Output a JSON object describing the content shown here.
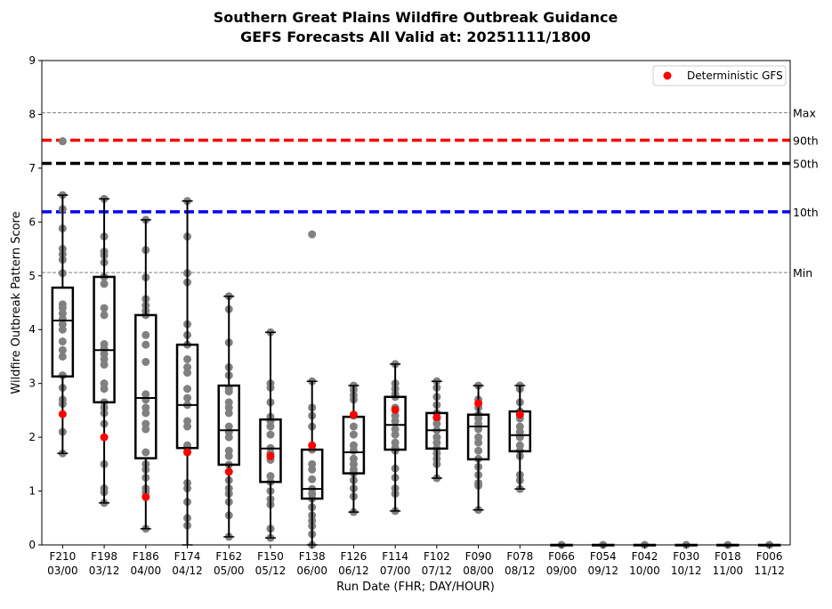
{
  "chart_data": {
    "type": "box",
    "title": [
      "Southern Great Plains Wildfire Outbreak Guidance",
      "GEFS Forecasts All Valid at: 20251111/1800"
    ],
    "xlabel": "Run Date (FHR; DAY/HOUR)",
    "ylabel": "Wildfire Outbreak Pattern Score",
    "ylim": [
      0,
      9
    ],
    "yticks": [
      "0",
      "1",
      "2",
      "3",
      "4",
      "5",
      "6",
      "7",
      "8",
      "9"
    ],
    "categories": [
      [
        "F210",
        "03/00"
      ],
      [
        "F198",
        "03/12"
      ],
      [
        "F186",
        "04/00"
      ],
      [
        "F174",
        "04/12"
      ],
      [
        "F162",
        "05/00"
      ],
      [
        "F150",
        "05/12"
      ],
      [
        "F138",
        "06/00"
      ],
      [
        "F126",
        "06/12"
      ],
      [
        "F114",
        "07/00"
      ],
      [
        "F102",
        "07/12"
      ],
      [
        "F090",
        "08/00"
      ],
      [
        "F078",
        "08/12"
      ],
      [
        "F066",
        "09/00"
      ],
      [
        "F054",
        "09/12"
      ],
      [
        "F042",
        "10/00"
      ],
      [
        "F030",
        "10/12"
      ],
      [
        "F018",
        "11/00"
      ],
      [
        "F006",
        "11/12"
      ]
    ],
    "boxes": [
      {
        "whislo": 1.7,
        "q1": 3.13,
        "med": 4.17,
        "q3": 4.78,
        "whishi": 6.5
      },
      {
        "whislo": 0.78,
        "q1": 2.65,
        "med": 3.62,
        "q3": 4.98,
        "whishi": 6.43
      },
      {
        "whislo": 0.3,
        "q1": 1.61,
        "med": 2.73,
        "q3": 4.27,
        "whishi": 6.04
      },
      {
        "whislo": 0.0,
        "q1": 1.8,
        "med": 2.6,
        "q3": 3.72,
        "whishi": 6.39
      },
      {
        "whislo": 0.15,
        "q1": 1.49,
        "med": 2.13,
        "q3": 2.96,
        "whishi": 4.62
      },
      {
        "whislo": 0.13,
        "q1": 1.17,
        "med": 1.79,
        "q3": 2.33,
        "whishi": 3.95
      },
      {
        "whislo": 0.0,
        "q1": 0.86,
        "med": 1.04,
        "q3": 1.77,
        "whishi": 3.04
      },
      {
        "whislo": 0.61,
        "q1": 1.33,
        "med": 1.72,
        "q3": 2.38,
        "whishi": 2.96
      },
      {
        "whislo": 0.63,
        "q1": 1.77,
        "med": 2.23,
        "q3": 2.75,
        "whishi": 3.36
      },
      {
        "whislo": 1.24,
        "q1": 1.79,
        "med": 2.13,
        "q3": 2.45,
        "whishi": 3.04
      },
      {
        "whislo": 0.65,
        "q1": 1.59,
        "med": 2.2,
        "q3": 2.42,
        "whishi": 2.96
      },
      {
        "whislo": 1.04,
        "q1": 1.74,
        "med": 2.04,
        "q3": 2.48,
        "whishi": 2.96
      },
      {
        "whislo": 0,
        "q1": 0,
        "med": 0,
        "q3": 0,
        "whishi": 0
      },
      {
        "whislo": 0,
        "q1": 0,
        "med": 0,
        "q3": 0,
        "whishi": 0
      },
      {
        "whislo": 0,
        "q1": 0,
        "med": 0,
        "q3": 0,
        "whishi": 0
      },
      {
        "whislo": 0,
        "q1": 0,
        "med": 0,
        "q3": 0,
        "whishi": 0
      },
      {
        "whislo": 0,
        "q1": 0,
        "med": 0,
        "q3": 0,
        "whishi": 0
      },
      {
        "whislo": 0,
        "q1": 0,
        "med": 0,
        "q3": 0,
        "whishi": 0
      }
    ],
    "members": [
      [
        7.5,
        6.5,
        6.24,
        5.88,
        5.5,
        5.4,
        5.3,
        5.05,
        4.47,
        4.4,
        4.3,
        4.2,
        4.1,
        4.0,
        3.78,
        3.62,
        3.5,
        3.15,
        2.92,
        2.7,
        2.62,
        2.1,
        1.7
      ],
      [
        6.43,
        5.73,
        5.45,
        5.38,
        5.25,
        4.98,
        4.85,
        4.4,
        4.27,
        3.73,
        3.65,
        3.55,
        3.45,
        3.35,
        3.0,
        2.9,
        2.65,
        2.55,
        2.45,
        2.25,
        1.5,
        1.05,
        0.98,
        0.78
      ],
      [
        6.04,
        5.48,
        4.97,
        4.57,
        4.45,
        4.35,
        4.27,
        3.9,
        3.72,
        3.4,
        2.8,
        2.7,
        2.55,
        2.45,
        2.25,
        2.15,
        1.72,
        1.5,
        1.4,
        1.25,
        1.05,
        0.98,
        0.3
      ],
      [
        6.39,
        5.73,
        5.05,
        4.88,
        4.1,
        3.9,
        3.72,
        3.45,
        3.3,
        3.2,
        2.9,
        2.73,
        2.6,
        2.3,
        2.2,
        1.85,
        1.8,
        1.15,
        1.05,
        0.8,
        0.5,
        0.36
      ],
      [
        4.62,
        4.38,
        3.76,
        3.3,
        3.15,
        2.9,
        2.85,
        2.65,
        2.55,
        2.45,
        2.2,
        2.1,
        2.0,
        1.75,
        1.65,
        1.49,
        1.2,
        1.05,
        0.95,
        0.8,
        0.55,
        0.15
      ],
      [
        3.95,
        3.0,
        2.92,
        2.65,
        2.38,
        2.3,
        2.2,
        2.05,
        1.8,
        1.7,
        1.58,
        1.28,
        1.17,
        1.0,
        0.85,
        0.75,
        0.3,
        0.13
      ],
      [
        5.77,
        3.04,
        2.55,
        2.4,
        2.2,
        1.77,
        1.5,
        1.4,
        1.22,
        1.04,
        0.95,
        0.86,
        0.7,
        0.55,
        0.45,
        0.35,
        0.2,
        0.0
      ],
      [
        2.96,
        2.88,
        2.78,
        2.7,
        2.4,
        2.2,
        2.05,
        1.85,
        1.75,
        1.6,
        1.5,
        1.4,
        1.33,
        1.2,
        1.05,
        0.9,
        0.61
      ],
      [
        3.36,
        3.0,
        2.9,
        2.8,
        2.75,
        2.55,
        2.4,
        2.3,
        2.15,
        2.05,
        1.9,
        1.8,
        1.75,
        1.42,
        1.25,
        1.05,
        0.95,
        0.63
      ],
      [
        3.04,
        2.92,
        2.75,
        2.6,
        2.45,
        2.35,
        2.25,
        2.13,
        2.0,
        1.9,
        1.79,
        1.7,
        1.6,
        1.5,
        1.24
      ],
      [
        2.96,
        2.7,
        2.55,
        2.42,
        2.35,
        2.25,
        2.15,
        2.0,
        1.9,
        1.75,
        1.6,
        1.45,
        1.3,
        1.15,
        1.1,
        0.65
      ],
      [
        2.96,
        2.9,
        2.65,
        2.48,
        2.35,
        2.2,
        2.1,
        2.0,
        1.85,
        1.75,
        1.65,
        1.3,
        1.2,
        1.04
      ],
      [
        0
      ],
      [
        0
      ],
      [
        0
      ],
      [
        0
      ],
      [
        0
      ],
      [
        0
      ]
    ],
    "deterministic": [
      2.43,
      2.0,
      0.89,
      1.72,
      1.36,
      1.65,
      1.85,
      2.42,
      2.51,
      2.37,
      2.63,
      2.42,
      null,
      null,
      null,
      null,
      null,
      null
    ],
    "reference_lines": [
      {
        "label": "Max",
        "value": 8.03,
        "color": "#808080",
        "style": "thin-dashed"
      },
      {
        "label": "90th",
        "value": 7.52,
        "color": "#ff0000",
        "style": "thick-dashed"
      },
      {
        "label": "50th",
        "value": 7.09,
        "color": "#000000",
        "style": "thick-dashed"
      },
      {
        "label": "10th",
        "value": 6.19,
        "color": "#0000ff",
        "style": "thick-dashed"
      },
      {
        "label": "Min",
        "value": 5.06,
        "color": "#808080",
        "style": "thin-dashed"
      }
    ],
    "legend": {
      "label": "Deterministic GFS",
      "placement": "top-right",
      "color": "#ff0000"
    },
    "member_color": "#808080",
    "grid": false
  }
}
